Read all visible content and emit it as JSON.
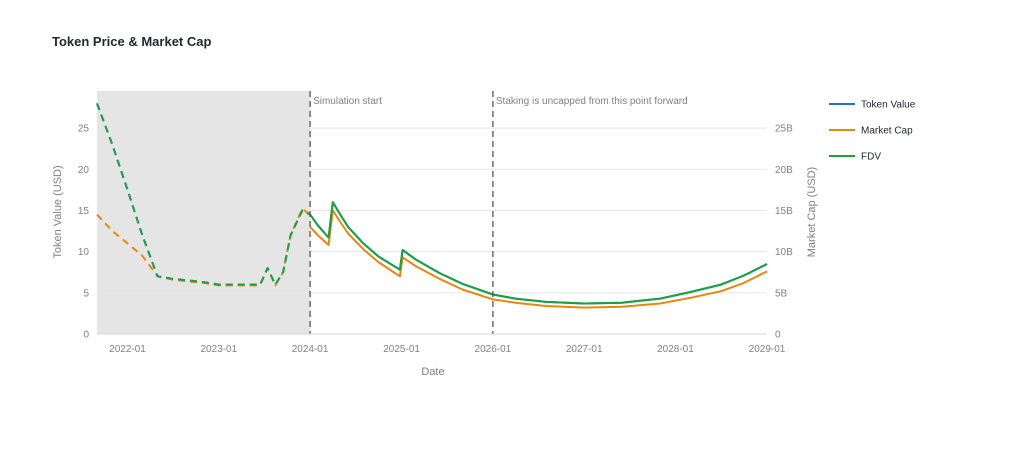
{
  "chart_data": {
    "type": "line",
    "title": "Token Price & Market Cap",
    "xlabel": "Date",
    "ylabel": "Token Value (USD)",
    "y2label": "Market Cap (USD)",
    "xlim": [
      "2021-09-01",
      "2029-01-01"
    ],
    "ylim": [
      0,
      29.5
    ],
    "y2lim": [
      0,
      29500000000
    ],
    "x_ticks": [
      "2022-01",
      "2023-01",
      "2024-01",
      "2025-01",
      "2026-01",
      "2027-01",
      "2028-01",
      "2029-01"
    ],
    "x_tick_dates": [
      "2022-01-01",
      "2023-01-01",
      "2024-01-01",
      "2025-01-01",
      "2026-01-01",
      "2027-01-01",
      "2028-01-01",
      "2029-01-01"
    ],
    "y_ticks": [
      0,
      5,
      10,
      15,
      20,
      25
    ],
    "y_tick_labels": [
      "0",
      "5",
      "10",
      "15",
      "20",
      "25"
    ],
    "y2_ticks": [
      0,
      5000000000,
      10000000000,
      15000000000,
      20000000000,
      25000000000
    ],
    "y2_tick_labels": [
      "0",
      "5B",
      "10B",
      "15B",
      "20B",
      "25B"
    ],
    "grid": true,
    "legend_position": "right",
    "shaded_region": {
      "start": "2021-09-01",
      "end": "2024-01-01",
      "color": "#e5e5e5"
    },
    "annotations": [
      {
        "date": "2024-01-01",
        "text": "Simulation start"
      },
      {
        "date": "2026-01-01",
        "text": "Staking is uncapped from this point forward"
      }
    ],
    "series": [
      {
        "name": "Token Value",
        "axis": "y",
        "color": "#1f77b4",
        "historical": [
          [
            "2021-09-01",
            28.0
          ],
          [
            "2021-11-01",
            23.0
          ],
          [
            "2022-01-01",
            17.5
          ],
          [
            "2022-03-01",
            12.0
          ],
          [
            "2022-05-01",
            7.0
          ],
          [
            "2022-07-01",
            6.7
          ],
          [
            "2022-09-01",
            6.5
          ],
          [
            "2022-11-01",
            6.3
          ],
          [
            "2023-01-01",
            6.0
          ],
          [
            "2023-03-01",
            6.0
          ],
          [
            "2023-05-01",
            6.0
          ],
          [
            "2023-06-15",
            6.0
          ],
          [
            "2023-07-15",
            8.0
          ],
          [
            "2023-08-15",
            6.0
          ],
          [
            "2023-09-15",
            7.5
          ],
          [
            "2023-10-15",
            12.0
          ],
          [
            "2023-12-01",
            15.0
          ],
          [
            "2024-01-01",
            14.5
          ]
        ],
        "simulated": [
          [
            "2024-01-01",
            14.5
          ],
          [
            "2024-02-01",
            13.2
          ],
          [
            "2024-03-15",
            11.7
          ],
          [
            "2024-04-01",
            16.0
          ],
          [
            "2024-05-01",
            14.5
          ],
          [
            "2024-06-01",
            13.0
          ],
          [
            "2024-08-01",
            11.0
          ],
          [
            "2024-10-01",
            9.4
          ],
          [
            "2024-12-25",
            7.8
          ],
          [
            "2025-01-05",
            10.2
          ],
          [
            "2025-03-01",
            9.0
          ],
          [
            "2025-06-01",
            7.4
          ],
          [
            "2025-09-01",
            6.1
          ],
          [
            "2026-01-01",
            4.8
          ],
          [
            "2026-04-01",
            4.3
          ],
          [
            "2026-08-01",
            3.9
          ],
          [
            "2027-01-01",
            3.7
          ],
          [
            "2027-06-01",
            3.8
          ],
          [
            "2027-11-01",
            4.3
          ],
          [
            "2028-03-01",
            5.1
          ],
          [
            "2028-07-01",
            6.0
          ],
          [
            "2028-10-01",
            7.1
          ],
          [
            "2029-01-01",
            8.5
          ]
        ]
      },
      {
        "name": "Market Cap",
        "axis": "y2",
        "color": "#e8870e",
        "historical": [
          [
            "2021-09-01",
            14500000000
          ],
          [
            "2021-11-01",
            12500000000
          ],
          [
            "2022-01-01",
            11000000000
          ],
          [
            "2022-03-01",
            9500000000
          ],
          [
            "2022-05-01",
            7000000000
          ],
          [
            "2022-07-01",
            6600000000
          ],
          [
            "2022-09-01",
            6400000000
          ],
          [
            "2022-11-01",
            6200000000
          ],
          [
            "2023-01-01",
            5900000000
          ],
          [
            "2023-03-01",
            5900000000
          ],
          [
            "2023-05-01",
            5900000000
          ],
          [
            "2023-06-15",
            5900000000
          ],
          [
            "2023-07-15",
            8000000000
          ],
          [
            "2023-08-15",
            5900000000
          ],
          [
            "2023-09-15",
            7500000000
          ],
          [
            "2023-10-15",
            12000000000
          ],
          [
            "2023-12-01",
            15200000000
          ],
          [
            "2024-01-01",
            14500000000
          ]
        ],
        "simulated": [
          [
            "2024-01-01",
            13000000000
          ],
          [
            "2024-02-01",
            12000000000
          ],
          [
            "2024-03-15",
            10800000000
          ],
          [
            "2024-04-01",
            15000000000
          ],
          [
            "2024-05-01",
            13600000000
          ],
          [
            "2024-06-01",
            12200000000
          ],
          [
            "2024-08-01",
            10300000000
          ],
          [
            "2024-10-01",
            8700000000
          ],
          [
            "2024-12-25",
            7000000000
          ],
          [
            "2025-01-05",
            9300000000
          ],
          [
            "2025-03-01",
            8200000000
          ],
          [
            "2025-06-01",
            6700000000
          ],
          [
            "2025-09-01",
            5400000000
          ],
          [
            "2026-01-01",
            4200000000
          ],
          [
            "2026-04-01",
            3800000000
          ],
          [
            "2026-08-01",
            3400000000
          ],
          [
            "2027-01-01",
            3200000000
          ],
          [
            "2027-06-01",
            3300000000
          ],
          [
            "2027-11-01",
            3700000000
          ],
          [
            "2028-03-01",
            4400000000
          ],
          [
            "2028-07-01",
            5200000000
          ],
          [
            "2028-10-01",
            6200000000
          ],
          [
            "2029-01-01",
            7600000000
          ]
        ]
      },
      {
        "name": "FDV",
        "axis": "y2",
        "color": "#1aa144",
        "historical": [
          [
            "2021-09-01",
            28000000000
          ],
          [
            "2021-11-01",
            23000000000
          ],
          [
            "2022-01-01",
            17500000000
          ],
          [
            "2022-03-01",
            12000000000
          ],
          [
            "2022-05-01",
            7000000000
          ],
          [
            "2022-07-01",
            6700000000
          ],
          [
            "2022-09-01",
            6500000000
          ],
          [
            "2022-11-01",
            6300000000
          ],
          [
            "2023-01-01",
            6000000000
          ],
          [
            "2023-03-01",
            6000000000
          ],
          [
            "2023-05-01",
            6000000000
          ],
          [
            "2023-06-15",
            6000000000
          ],
          [
            "2023-07-15",
            8000000000
          ],
          [
            "2023-08-15",
            6000000000
          ],
          [
            "2023-09-15",
            7500000000
          ],
          [
            "2023-10-15",
            12000000000
          ],
          [
            "2023-12-01",
            15000000000
          ],
          [
            "2024-01-01",
            14500000000
          ]
        ],
        "simulated": [
          [
            "2024-01-01",
            14500000000
          ],
          [
            "2024-02-01",
            13200000000
          ],
          [
            "2024-03-15",
            11700000000
          ],
          [
            "2024-04-01",
            16000000000
          ],
          [
            "2024-05-01",
            14500000000
          ],
          [
            "2024-06-01",
            13000000000
          ],
          [
            "2024-08-01",
            11000000000
          ],
          [
            "2024-10-01",
            9400000000
          ],
          [
            "2024-12-25",
            7800000000
          ],
          [
            "2025-01-05",
            10200000000
          ],
          [
            "2025-03-01",
            9000000000
          ],
          [
            "2025-06-01",
            7400000000
          ],
          [
            "2025-09-01",
            6100000000
          ],
          [
            "2026-01-01",
            4800000000
          ],
          [
            "2026-04-01",
            4300000000
          ],
          [
            "2026-08-01",
            3900000000
          ],
          [
            "2027-01-01",
            3700000000
          ],
          [
            "2027-06-01",
            3800000000
          ],
          [
            "2027-11-01",
            4300000000
          ],
          [
            "2028-03-01",
            5100000000
          ],
          [
            "2028-07-01",
            6000000000
          ],
          [
            "2028-10-01",
            7100000000
          ],
          [
            "2029-01-01",
            8500000000
          ]
        ]
      }
    ]
  }
}
